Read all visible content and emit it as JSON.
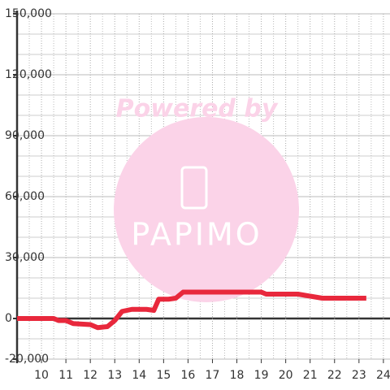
{
  "chart_data": {
    "type": "line",
    "watermark": {
      "caption": "Powered by",
      "logo": "PAPIMO"
    },
    "series": [
      {
        "color": "#e8283c",
        "x": [
          9,
          10.5,
          10.7,
          11,
          11.3,
          12,
          12.3,
          12.7,
          13,
          13.3,
          13.7,
          14.3,
          14.6,
          14.8,
          15.2,
          15.5,
          15.8,
          19,
          19.2,
          20.5,
          21,
          21.5,
          23.3
        ],
        "values": [
          0,
          0,
          -1000,
          -1000,
          -2500,
          -3000,
          -4500,
          -4000,
          -1000,
          3500,
          4500,
          4500,
          4000,
          9500,
          9500,
          10000,
          13000,
          13000,
          12000,
          12000,
          11000,
          10000,
          10000
        ]
      }
    ],
    "xlim": [
      9,
      24.27
    ],
    "xticks": [
      10,
      11,
      12,
      13,
      14,
      15,
      16,
      17,
      18,
      19,
      20,
      21,
      22,
      23,
      24
    ],
    "xgrid_minor": [
      9.5,
      10.5,
      11.5,
      12.5,
      13.5,
      14.5,
      15.5,
      16.5,
      17.5,
      18.5,
      19.5,
      20.5,
      21.5,
      22.5,
      23.5
    ],
    "ylim": [
      -20000,
      150000
    ],
    "yticks": [
      {
        "value": -20000,
        "label": "-20,000"
      },
      0,
      {
        "value": 30000,
        "label": "30,000"
      },
      {
        "value": 60000,
        "label": "60,000"
      },
      {
        "value": 90000,
        "label": "90,000"
      },
      {
        "value": 120000,
        "label": "120,000"
      },
      {
        "value": 150000,
        "label": "150,000"
      }
    ],
    "ygrid_minor": [
      -10000,
      10000,
      20000,
      40000,
      50000,
      70000,
      80000,
      100000,
      110000,
      130000,
      140000
    ],
    "grid": true
  }
}
